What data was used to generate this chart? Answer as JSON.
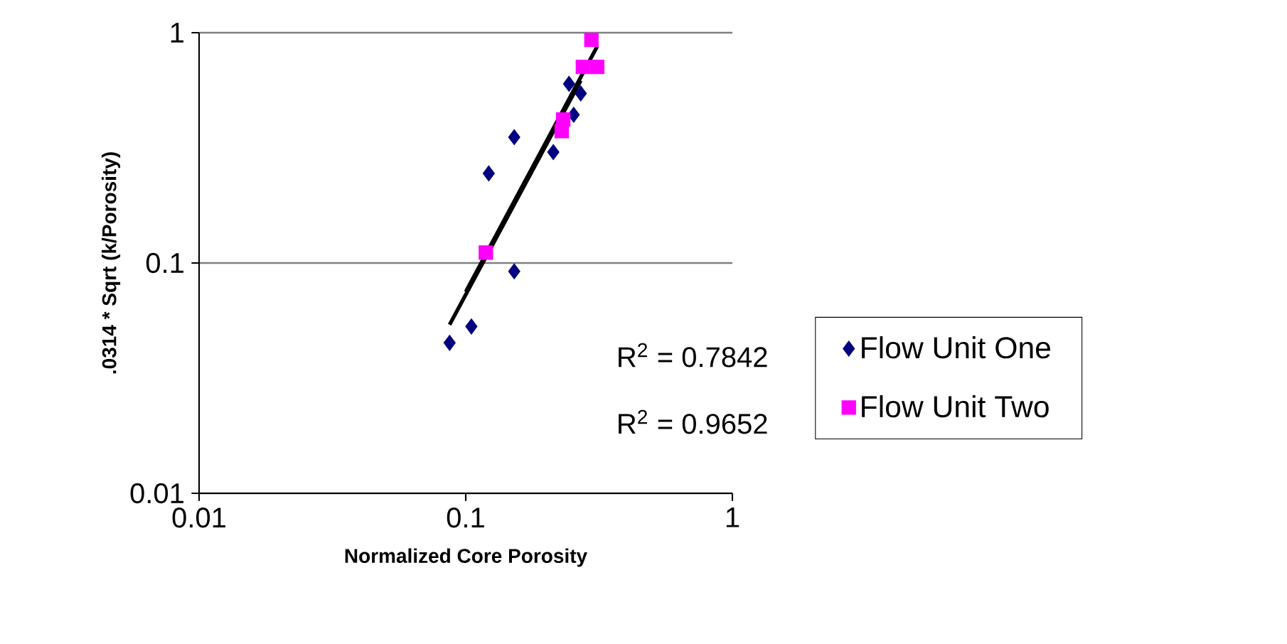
{
  "chart_data": {
    "type": "scatter",
    "xlabel": "Normalized Core Porosity",
    "ylabel": ".0314 * Sqrt (k/Porosity)",
    "log": "xy",
    "grid": "y",
    "legend": "right",
    "xlim": [
      0.01,
      1
    ],
    "ylim": [
      0.01,
      1
    ],
    "xticks": [
      0.01,
      0.1,
      1
    ],
    "yticks": [
      0.01,
      0.1,
      1
    ],
    "annotations": [
      "R$^{2}$ = 0.7842",
      "R$^{2}$ = 0.9652"
    ],
    "series": [
      {
        "name": "Flow Unit One",
        "color": "#000080",
        "marker": "diamond",
        "x": [
          0.087,
          0.105,
          0.152,
          0.122,
          0.152,
          0.213,
          0.244,
          0.27,
          0.254
        ],
        "values": [
          0.045,
          0.053,
          0.092,
          0.245,
          0.352,
          0.303,
          0.6,
          0.545,
          0.44
        ]
      },
      {
        "name": "Flow Unit Two",
        "color": "#ff00ff",
        "marker": "square",
        "x": [
          0.119,
          0.229,
          0.232,
          0.296,
          0.275,
          0.311
        ],
        "values": [
          0.111,
          0.374,
          0.42,
          0.93,
          0.71,
          0.71
        ]
      },
      {
        "type": "line",
        "color": "#000000",
        "marker": "none",
        "x": [
          0.087,
          0.27
        ],
        "values": [
          0.054,
          0.62
        ]
      },
      {
        "type": "line",
        "color": "#000000",
        "marker": "none",
        "x": [
          0.1,
          0.311
        ],
        "values": [
          0.075,
          0.87
        ]
      }
    ]
  }
}
